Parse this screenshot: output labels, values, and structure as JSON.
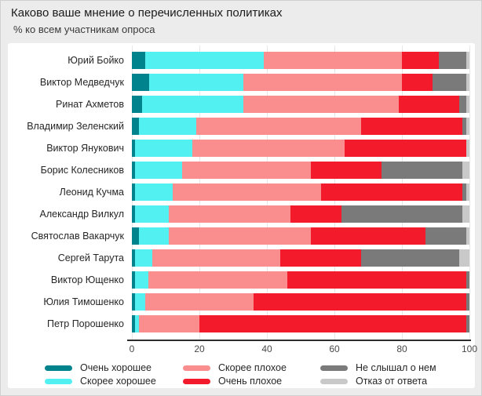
{
  "page": {
    "title": "Каково ваше мнение о перечисленных политиках",
    "subtitle": "% ко всем участникам опроса"
  },
  "chart_data": {
    "type": "bar",
    "orientation": "horizontal",
    "stacked": true,
    "title": "Каково ваше мнение о перечисленных политиках",
    "subtitle": "% ко всем участникам опроса",
    "xlabel": "",
    "ylabel": "",
    "xlim": [
      0,
      100
    ],
    "x_ticks": [
      0,
      20,
      40,
      60,
      80,
      100
    ],
    "grid": true,
    "legend_position": "bottom",
    "categories": [
      "Юрий Бойко",
      "Виктор Медведчук",
      "Ринат Ахметов",
      "Владимир Зеленский",
      "Виктор Янукович",
      "Борис Колесников",
      "Леонид Кучма",
      "Александр Вилкул",
      "Святослав Вакарчук",
      "Сергей Тарута",
      "Виктор Ющенко",
      "Юлия Тимошенко",
      "Петр Порошенко"
    ],
    "series": [
      {
        "name": "Очень хорошее",
        "color": "#00838C",
        "values": [
          4,
          5,
          3,
          2,
          1,
          1,
          1,
          1,
          2,
          1,
          1,
          1,
          1
        ]
      },
      {
        "name": "Скорее хорошее",
        "color": "#53F0F1",
        "values": [
          35,
          28,
          30,
          17,
          17,
          14,
          11,
          10,
          9,
          5,
          4,
          3,
          1
        ]
      },
      {
        "name": "Скорее плохое",
        "color": "#FA8D8D",
        "values": [
          41,
          47,
          46,
          49,
          45,
          38,
          44,
          36,
          42,
          38,
          41,
          32,
          18
        ]
      },
      {
        "name": "Очень плохое",
        "color": "#F31A2B",
        "values": [
          11,
          9,
          18,
          30,
          36,
          21,
          42,
          15,
          34,
          24,
          53,
          63,
          79
        ]
      },
      {
        "name": "Не слышал о нем",
        "color": "#7A7A7A",
        "values": [
          8,
          10,
          2,
          1,
          0,
          24,
          1,
          36,
          12,
          29,
          1,
          1,
          1
        ]
      },
      {
        "name": "Отказ от ответа",
        "color": "#C9C9C9",
        "values": [
          1,
          1,
          1,
          1,
          1,
          2,
          1,
          2,
          1,
          3,
          0,
          0,
          0
        ]
      }
    ],
    "legend_columns": [
      [
        0,
        1
      ],
      [
        2,
        3
      ],
      [
        4,
        5
      ]
    ]
  },
  "layout_colors": {
    "page_background": "#ECECEC",
    "card_background": "#FFFFFF",
    "gridline": "#E7E7E7",
    "axis_line": "#2E2E2E"
  }
}
